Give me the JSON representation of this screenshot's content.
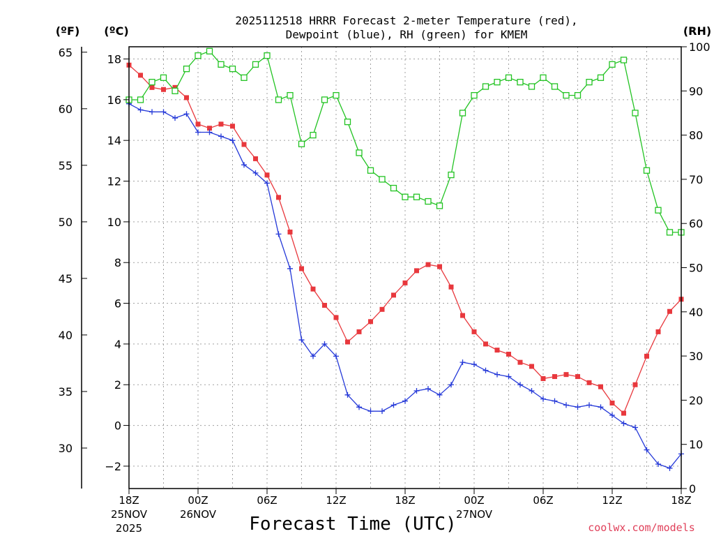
{
  "chart_data": {
    "type": "line",
    "title_line1": "2025112518 HRRR Forecast 2-meter Temperature (red),",
    "title_line2": "Dewpoint (blue), RH (green) for KMEM",
    "unit_f": "(ºF)",
    "unit_c": "(ºC)",
    "unit_rh": "(RH)",
    "xlabel": "Forecast Time (UTC)",
    "credit": "coolwx.com/models",
    "forecast_hours": [
      0,
      1,
      2,
      3,
      4,
      5,
      6,
      7,
      8,
      9,
      10,
      11,
      12,
      13,
      14,
      15,
      16,
      17,
      18,
      19,
      20,
      21,
      22,
      23,
      24,
      25,
      26,
      27,
      28,
      29,
      30,
      31,
      32,
      33,
      34,
      35,
      36,
      37,
      38,
      39,
      40,
      41,
      42,
      43,
      44,
      45,
      46,
      47,
      48
    ],
    "x_range": [
      0,
      48
    ],
    "x_ticks": [
      {
        "hour": 0,
        "label": "18Z",
        "sub1": "25NOV",
        "sub2": "2025"
      },
      {
        "hour": 6,
        "label": "00Z",
        "sub1": "26NOV",
        "sub2": ""
      },
      {
        "hour": 12,
        "label": "06Z",
        "sub1": "",
        "sub2": ""
      },
      {
        "hour": 18,
        "label": "12Z",
        "sub1": "",
        "sub2": ""
      },
      {
        "hour": 24,
        "label": "18Z",
        "sub1": "",
        "sub2": ""
      },
      {
        "hour": 30,
        "label": "00Z",
        "sub1": "27NOV",
        "sub2": ""
      },
      {
        "hour": 36,
        "label": "06Z",
        "sub1": "",
        "sub2": ""
      },
      {
        "hour": 42,
        "label": "12Z",
        "sub1": "",
        "sub2": ""
      },
      {
        "hour": 48,
        "label": "18Z",
        "sub1": "",
        "sub2": ""
      }
    ],
    "celsius_range": [
      -3.1,
      18.6
    ],
    "celsius_ticks": [
      -2,
      0,
      2,
      4,
      6,
      8,
      10,
      12,
      14,
      16,
      18
    ],
    "celsius_tick_labels": [
      "−2",
      "0",
      "2",
      "4",
      "6",
      "8",
      "10",
      "12",
      "14",
      "16",
      "18"
    ],
    "fahrenheit_ticks": [
      30,
      35,
      40,
      45,
      50,
      55,
      60,
      65
    ],
    "fahrenheit_tick_labels": [
      "30",
      "35",
      "40",
      "45",
      "50",
      "55",
      "60",
      "65"
    ],
    "rh_range": [
      0,
      100
    ],
    "rh_ticks": [
      0,
      10,
      20,
      30,
      40,
      50,
      60,
      70,
      80,
      90,
      100
    ],
    "rh_tick_labels": [
      "0",
      "10",
      "20",
      "30",
      "40",
      "50",
      "60",
      "70",
      "80",
      "90",
      "100"
    ],
    "series": [
      {
        "name": "2-meter Temperature",
        "units": "C",
        "color": "#e8383d",
        "marker": "filled-square",
        "values": [
          17.7,
          17.2,
          16.6,
          16.5,
          16.6,
          16.1,
          14.8,
          14.6,
          14.8,
          14.7,
          13.8,
          13.1,
          12.3,
          11.2,
          9.5,
          7.7,
          6.7,
          5.9,
          5.3,
          4.1,
          4.6,
          5.1,
          5.7,
          6.4,
          7.0,
          7.6,
          7.9,
          7.8,
          6.8,
          5.4,
          4.6,
          4.0,
          3.7,
          3.5,
          3.1,
          2.9,
          2.3,
          2.4,
          2.5,
          2.4,
          2.1,
          1.9,
          1.1,
          0.6,
          2.0,
          3.4,
          4.6,
          5.6,
          6.2
        ]
      },
      {
        "name": "Dewpoint",
        "units": "C",
        "color": "#2438d8",
        "marker": "plus",
        "values": [
          15.8,
          15.5,
          15.4,
          15.4,
          15.1,
          15.3,
          14.4,
          14.4,
          14.2,
          14.0,
          12.8,
          12.4,
          11.9,
          9.4,
          7.7,
          4.2,
          3.4,
          4.0,
          3.4,
          1.5,
          0.9,
          0.7,
          0.7,
          1.0,
          1.2,
          1.7,
          1.8,
          1.5,
          2.0,
          3.1,
          3.0,
          2.7,
          2.5,
          2.4,
          2.0,
          1.7,
          1.3,
          1.2,
          1.0,
          0.9,
          1.0,
          0.9,
          0.5,
          0.1,
          -0.1,
          -1.2,
          -1.9,
          -2.1,
          -1.4
        ]
      },
      {
        "name": "Relative Humidity",
        "units": "%",
        "color": "#22c322",
        "marker": "open-square",
        "values": [
          88,
          88,
          92,
          93,
          90,
          95,
          98,
          99,
          96,
          95,
          93,
          96,
          98,
          88,
          89,
          78,
          80,
          88,
          89,
          83,
          76,
          72,
          70,
          68,
          66,
          66,
          65,
          64,
          71,
          85,
          89,
          91,
          92,
          93,
          92,
          91,
          93,
          91,
          89,
          89,
          92,
          93,
          96,
          97,
          85,
          72,
          63,
          58,
          58
        ]
      }
    ]
  }
}
